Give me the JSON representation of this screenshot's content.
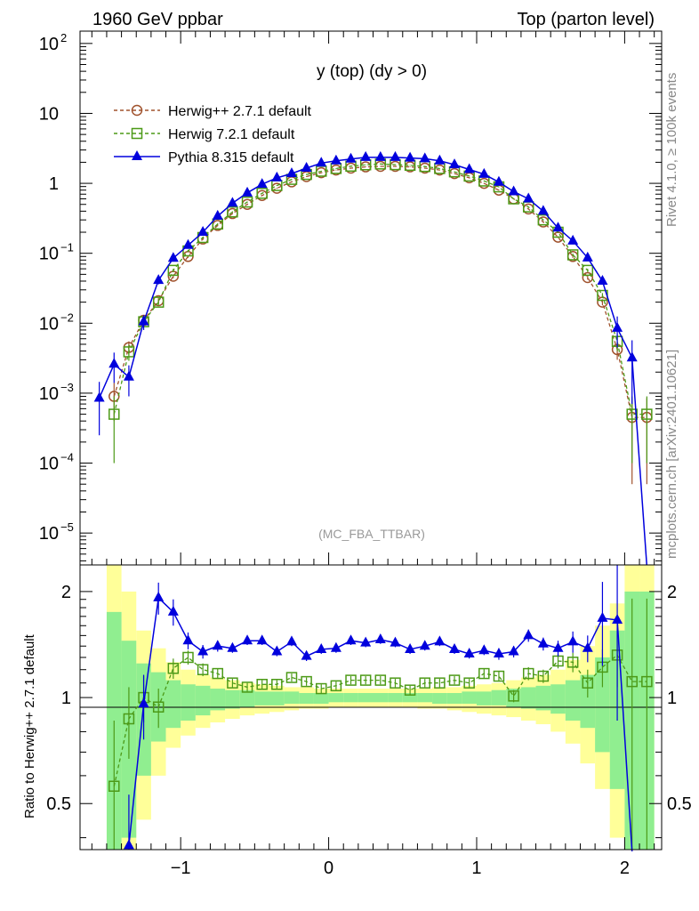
{
  "header": {
    "left": "1960 GeV ppbar",
    "right": "Top (parton level)",
    "side_rivet": "Rivet 4.1.0, ≥ 100k events",
    "side_mcplots": "mcplots.cern.ch [arXiv:2401.10621]"
  },
  "colors": {
    "herwig_pp": "#a0522d",
    "herwig7": "#4c9a17",
    "pythia": "#0000dd",
    "band_green": "#90ee90",
    "band_yellow": "#ffff99"
  },
  "chart_data": [
    {
      "type": "line",
      "panel": "main",
      "title": "y (top) (dy > 0)",
      "watermark": "(MC_FBA_TTBAR)",
      "yscale": "log",
      "xlim": [
        -1.68,
        2.25
      ],
      "ylim": [
        3.5e-06,
        150
      ],
      "y_ticks": [
        {
          "v": 100,
          "base": "10",
          "exp": "2"
        },
        {
          "v": 10,
          "base": "10",
          "exp": ""
        },
        {
          "v": 1,
          "base": "1",
          "exp": ""
        },
        {
          "v": 0.1,
          "base": "10",
          "exp": "−1"
        },
        {
          "v": 0.01,
          "base": "10",
          "exp": "−2"
        },
        {
          "v": 0.001,
          "base": "10",
          "exp": "−3"
        },
        {
          "v": 0.0001,
          "base": "10",
          "exp": "−4"
        },
        {
          "v": 1e-05,
          "base": "10",
          "exp": "−5"
        }
      ],
      "x": [
        -1.55,
        -1.45,
        -1.35,
        -1.25,
        -1.15,
        -1.05,
        -0.95,
        -0.85,
        -0.75,
        -0.65,
        -0.55,
        -0.45,
        -0.35,
        -0.25,
        -0.15,
        -0.05,
        0.05,
        0.15,
        0.25,
        0.35,
        0.45,
        0.55,
        0.65,
        0.75,
        0.85,
        0.95,
        1.05,
        1.15,
        1.25,
        1.35,
        1.45,
        1.55,
        1.65,
        1.75,
        1.85,
        1.95,
        2.05,
        2.15
      ],
      "series": [
        {
          "name": "Herwig++ 2.7.1 default",
          "marker": "circle",
          "style": "dashed",
          "values": [
            0,
            0.0009,
            0.0045,
            0.011,
            0.021,
            0.047,
            0.09,
            0.16,
            0.25,
            0.37,
            0.5,
            0.67,
            0.85,
            1.05,
            1.25,
            1.42,
            1.55,
            1.65,
            1.72,
            1.75,
            1.75,
            1.72,
            1.65,
            1.55,
            1.38,
            1.2,
            1.0,
            0.8,
            0.6,
            0.43,
            0.28,
            0.17,
            0.09,
            0.045,
            0.02,
            0.0042,
            0.00045,
            0.00045
          ]
        },
        {
          "name": "Herwig 7.2.1 default",
          "marker": "square",
          "style": "dashed",
          "values": [
            0,
            0.0005,
            0.0039,
            0.0105,
            0.02,
            0.057,
            0.108,
            0.168,
            0.262,
            0.39,
            0.54,
            0.72,
            0.93,
            1.14,
            1.34,
            1.49,
            1.63,
            1.76,
            1.84,
            1.89,
            1.85,
            1.81,
            1.74,
            1.63,
            1.46,
            1.27,
            1.08,
            0.89,
            0.6,
            0.46,
            0.3,
            0.2,
            0.095,
            0.057,
            0.025,
            0.0055,
            0.0005,
            0.0005
          ]
        },
        {
          "name": "Pythia 8.315 default",
          "marker": "triangle",
          "style": "solid",
          "values": [
            0.00085,
            0.0026,
            0.0017,
            0.0105,
            0.041,
            0.085,
            0.13,
            0.2,
            0.34,
            0.52,
            0.73,
            0.97,
            1.2,
            1.38,
            1.65,
            1.95,
            2.1,
            2.23,
            2.35,
            2.35,
            2.35,
            2.3,
            2.25,
            2.1,
            1.85,
            1.58,
            1.35,
            1.04,
            0.76,
            0.6,
            0.4,
            0.23,
            0.15,
            0.086,
            0.04,
            0.0085,
            0.0032,
            0
          ]
        }
      ],
      "errors": {
        "Herwig++ 2.7.1 default": [
          0,
          0.0005,
          0.001,
          0.0015,
          0.002,
          0.003,
          0.004,
          0.005,
          0.006,
          0.008,
          0.01,
          0.012,
          0.014,
          0.016,
          0.018,
          0.02,
          0.02,
          0.02,
          0.02,
          0.02,
          0.02,
          0.02,
          0.02,
          0.02,
          0.018,
          0.016,
          0.014,
          0.012,
          0.01,
          0.008,
          0.006,
          0.005,
          0.004,
          0.003,
          0.002,
          0.0012,
          0.0004,
          0.0004
        ],
        "Herwig 7.2.1 default": [
          0,
          0.0004,
          0.001,
          0.0015,
          0.002,
          0.003,
          0.004,
          0.005,
          0.006,
          0.008,
          0.01,
          0.012,
          0.014,
          0.016,
          0.018,
          0.02,
          0.02,
          0.02,
          0.02,
          0.02,
          0.02,
          0.02,
          0.02,
          0.02,
          0.018,
          0.016,
          0.014,
          0.012,
          0.01,
          0.008,
          0.006,
          0.005,
          0.004,
          0.003,
          0.002,
          0.0015,
          0.0004,
          0.0004
        ],
        "Pythia 8.315 default": [
          0.0006,
          0.0012,
          0.0008,
          0.0025,
          0.005,
          0.006,
          0.008,
          0.01,
          0.012,
          0.014,
          0.016,
          0.018,
          0.02,
          0.02,
          0.02,
          0.02,
          0.02,
          0.02,
          0.02,
          0.02,
          0.02,
          0.02,
          0.02,
          0.02,
          0.02,
          0.018,
          0.016,
          0.014,
          0.012,
          0.01,
          0.008,
          0.006,
          0.005,
          0.004,
          0.004,
          0.004,
          0.0025,
          0
        ]
      },
      "legend": {
        "position": "top-left",
        "entries": [
          "Herwig++ 2.7.1 default",
          "Herwig 7.2.1 default",
          "Pythia 8.315 default"
        ]
      }
    },
    {
      "type": "line",
      "panel": "ratio",
      "ylabel": "Ratio to Herwig++ 2.7.1 default",
      "yscale": "log",
      "ylim": [
        0.37,
        2.38
      ],
      "y_ticks": [
        {
          "v": 2,
          "label": "2"
        },
        {
          "v": 1,
          "label": "1"
        },
        {
          "v": 0.5,
          "label": "0.5"
        }
      ],
      "x_ticks": [
        {
          "v": -1,
          "label": "−1"
        },
        {
          "v": 0,
          "label": "0"
        },
        {
          "v": 1,
          "label": "1"
        },
        {
          "v": 2,
          "label": "2"
        }
      ],
      "x": [
        -1.45,
        -1.35,
        -1.25,
        -1.15,
        -1.05,
        -0.95,
        -0.85,
        -0.75,
        -0.65,
        -0.55,
        -0.45,
        -0.35,
        -0.25,
        -0.15,
        -0.05,
        0.05,
        0.15,
        0.25,
        0.35,
        0.45,
        0.55,
        0.65,
        0.75,
        0.85,
        0.95,
        1.05,
        1.15,
        1.25,
        1.35,
        1.45,
        1.55,
        1.65,
        1.75,
        1.85,
        1.95,
        2.05,
        2.15
      ],
      "series": [
        {
          "name": "Herwig 7.2.1 default",
          "marker": "square",
          "style": "dashed",
          "values": [
            0.56,
            0.87,
            1.0,
            0.94,
            1.21,
            1.3,
            1.2,
            1.17,
            1.1,
            1.07,
            1.09,
            1.09,
            1.14,
            1.11,
            1.06,
            1.08,
            1.12,
            1.12,
            1.12,
            1.1,
            1.05,
            1.1,
            1.1,
            1.12,
            1.1,
            1.17,
            1.15,
            1.01,
            1.17,
            1.15,
            1.27,
            1.26,
            1.1,
            1.22,
            1.32,
            1.11,
            1.11
          ]
        },
        {
          "name": "Pythia 8.315 default",
          "marker": "triangle",
          "style": "solid",
          "values": [
            null,
            0.38,
            0.96,
            1.92,
            1.75,
            1.45,
            1.35,
            1.4,
            1.38,
            1.45,
            1.45,
            1.35,
            1.44,
            1.31,
            1.37,
            1.38,
            1.45,
            1.43,
            1.46,
            1.43,
            1.37,
            1.4,
            1.44,
            1.37,
            1.33,
            1.36,
            1.33,
            1.35,
            1.5,
            1.42,
            1.38,
            1.44,
            1.38,
            1.68,
            1.66,
            null,
            null
          ]
        }
      ],
      "errors": {
        "Herwig 7.2.1 default": [
          0.3,
          0.2,
          0.15,
          0.12,
          0.08,
          0.06,
          0.05,
          0.04,
          0.03,
          0.03,
          0.03,
          0.03,
          0.03,
          0.03,
          0.03,
          0.03,
          0.03,
          0.03,
          0.03,
          0.03,
          0.03,
          0.03,
          0.03,
          0.03,
          0.03,
          0.04,
          0.04,
          0.04,
          0.05,
          0.05,
          0.06,
          0.08,
          0.1,
          0.15,
          0.25,
          0.8,
          0.8
        ],
        "Pythia 8.315 default": [
          0,
          0.15,
          0.2,
          0.2,
          0.15,
          0.08,
          0.06,
          0.05,
          0.04,
          0.04,
          0.04,
          0.04,
          0.04,
          0.04,
          0.04,
          0.04,
          0.04,
          0.04,
          0.04,
          0.04,
          0.04,
          0.04,
          0.04,
          0.04,
          0.04,
          0.04,
          0.05,
          0.05,
          0.06,
          0.06,
          0.07,
          0.1,
          0.12,
          0.45,
          0.8,
          0,
          0
        ]
      },
      "bands": {
        "x_edges": [
          -1.5,
          -1.4,
          -1.3,
          -1.2,
          -1.1,
          -1.0,
          -0.9,
          -0.8,
          -0.7,
          -0.6,
          -0.5,
          -0.4,
          -0.3,
          -0.2,
          -0.1,
          0,
          0.1,
          0.2,
          0.3,
          0.4,
          0.5,
          0.6,
          0.7,
          0.8,
          0.9,
          1.0,
          1.1,
          1.2,
          1.3,
          1.4,
          1.5,
          1.6,
          1.7,
          1.8,
          1.9,
          2.0,
          2.1,
          2.2
        ],
        "green": [
          [
            0.3,
            1.75
          ],
          [
            0.4,
            1.45
          ],
          [
            0.6,
            1.25
          ],
          [
            0.75,
            1.18
          ],
          [
            0.82,
            1.12
          ],
          [
            0.86,
            1.09
          ],
          [
            0.89,
            1.08
          ],
          [
            0.92,
            1.06
          ],
          [
            0.93,
            1.05
          ],
          [
            0.94,
            1.05
          ],
          [
            0.95,
            1.04
          ],
          [
            0.95,
            1.04
          ],
          [
            0.96,
            1.04
          ],
          [
            0.96,
            1.03
          ],
          [
            0.96,
            1.03
          ],
          [
            0.97,
            1.03
          ],
          [
            0.97,
            1.03
          ],
          [
            0.97,
            1.03
          ],
          [
            0.97,
            1.03
          ],
          [
            0.97,
            1.03
          ],
          [
            0.97,
            1.03
          ],
          [
            0.97,
            1.03
          ],
          [
            0.96,
            1.03
          ],
          [
            0.96,
            1.03
          ],
          [
            0.96,
            1.04
          ],
          [
            0.95,
            1.04
          ],
          [
            0.95,
            1.05
          ],
          [
            0.94,
            1.06
          ],
          [
            0.93,
            1.07
          ],
          [
            0.92,
            1.08
          ],
          [
            0.9,
            1.09
          ],
          [
            0.86,
            1.12
          ],
          [
            0.82,
            1.16
          ],
          [
            0.7,
            1.3
          ],
          [
            0.55,
            1.55
          ],
          [
            0.3,
            2.0
          ],
          [
            0.3,
            2.0
          ]
        ],
        "yellow": [
          [
            0.3,
            2.5
          ],
          [
            0.3,
            2.0
          ],
          [
            0.45,
            1.55
          ],
          [
            0.6,
            1.38
          ],
          [
            0.72,
            1.26
          ],
          [
            0.78,
            1.2
          ],
          [
            0.82,
            1.16
          ],
          [
            0.85,
            1.14
          ],
          [
            0.87,
            1.12
          ],
          [
            0.89,
            1.1
          ],
          [
            0.9,
            1.09
          ],
          [
            0.91,
            1.08
          ],
          [
            0.92,
            1.07
          ],
          [
            0.93,
            1.07
          ],
          [
            0.93,
            1.06
          ],
          [
            0.94,
            1.06
          ],
          [
            0.94,
            1.06
          ],
          [
            0.94,
            1.06
          ],
          [
            0.94,
            1.06
          ],
          [
            0.94,
            1.06
          ],
          [
            0.94,
            1.06
          ],
          [
            0.93,
            1.06
          ],
          [
            0.93,
            1.07
          ],
          [
            0.92,
            1.07
          ],
          [
            0.91,
            1.08
          ],
          [
            0.9,
            1.09
          ],
          [
            0.89,
            1.1
          ],
          [
            0.88,
            1.12
          ],
          [
            0.86,
            1.14
          ],
          [
            0.84,
            1.16
          ],
          [
            0.8,
            1.2
          ],
          [
            0.74,
            1.28
          ],
          [
            0.65,
            1.4
          ],
          [
            0.55,
            1.6
          ],
          [
            0.4,
            1.85
          ],
          [
            0.3,
            2.5
          ],
          [
            0.3,
            2.5
          ]
        ]
      }
    }
  ]
}
